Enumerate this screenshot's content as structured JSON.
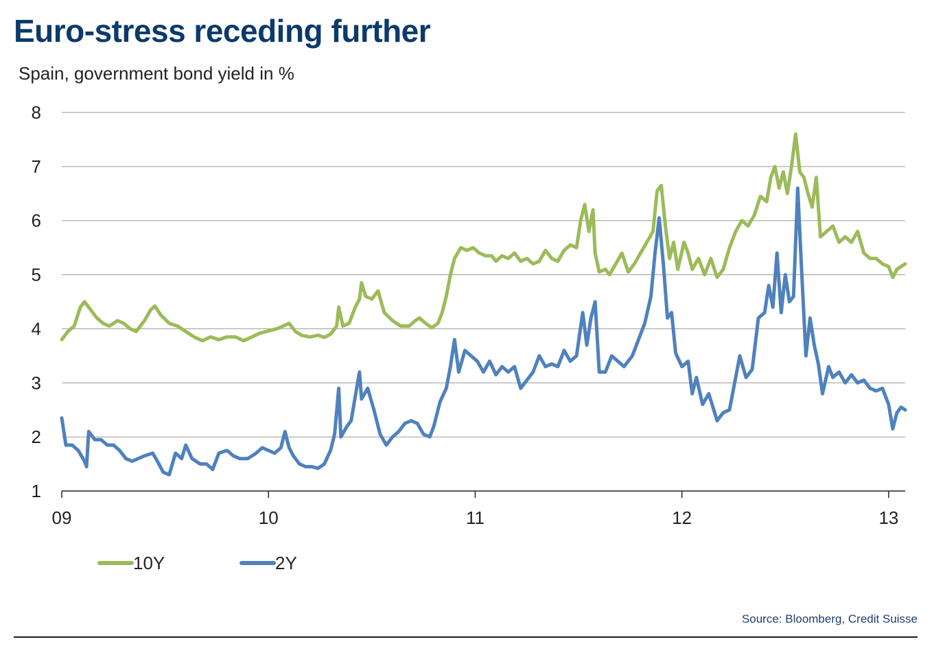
{
  "header": {
    "title": "Euro-stress receding further",
    "subtitle": "Spain, government bond yield in %"
  },
  "footer": {
    "source": "Source: Bloomberg, Credit Suisse"
  },
  "chart_data": {
    "type": "line",
    "title": "Euro-stress receding further",
    "ylabel": "Spain, government bond yield in %",
    "xlim": [
      2009.0,
      2013.08
    ],
    "ylim": [
      1,
      8
    ],
    "yticks": [
      1,
      2,
      3,
      4,
      5,
      6,
      7,
      8
    ],
    "xticks": [
      {
        "value": 2009,
        "label": "09"
      },
      {
        "value": 2010,
        "label": "10"
      },
      {
        "value": 2011,
        "label": "11"
      },
      {
        "value": 2012,
        "label": "12"
      },
      {
        "value": 2013,
        "label": "13"
      }
    ],
    "grid": true,
    "legend_position": "bottom-left",
    "series": [
      {
        "name": "10Y",
        "color": "#9bbb59",
        "points": [
          [
            2009.0,
            3.8
          ],
          [
            2009.03,
            3.95
          ],
          [
            2009.06,
            4.05
          ],
          [
            2009.09,
            4.4
          ],
          [
            2009.11,
            4.5
          ],
          [
            2009.14,
            4.35
          ],
          [
            2009.17,
            4.2
          ],
          [
            2009.2,
            4.1
          ],
          [
            2009.23,
            4.05
          ],
          [
            2009.27,
            4.15
          ],
          [
            2009.3,
            4.1
          ],
          [
            2009.33,
            4.0
          ],
          [
            2009.36,
            3.95
          ],
          [
            2009.4,
            4.15
          ],
          [
            2009.43,
            4.35
          ],
          [
            2009.45,
            4.42
          ],
          [
            2009.48,
            4.25
          ],
          [
            2009.52,
            4.1
          ],
          [
            2009.56,
            4.05
          ],
          [
            2009.6,
            3.95
          ],
          [
            2009.64,
            3.85
          ],
          [
            2009.68,
            3.78
          ],
          [
            2009.72,
            3.85
          ],
          [
            2009.76,
            3.8
          ],
          [
            2009.8,
            3.85
          ],
          [
            2009.84,
            3.85
          ],
          [
            2009.88,
            3.78
          ],
          [
            2009.92,
            3.85
          ],
          [
            2009.96,
            3.92
          ],
          [
            2010.0,
            3.96
          ],
          [
            2010.04,
            4.0
          ],
          [
            2010.07,
            4.05
          ],
          [
            2010.1,
            4.1
          ],
          [
            2010.13,
            3.95
          ],
          [
            2010.16,
            3.88
          ],
          [
            2010.2,
            3.85
          ],
          [
            2010.24,
            3.88
          ],
          [
            2010.27,
            3.84
          ],
          [
            2010.3,
            3.9
          ],
          [
            2010.33,
            4.05
          ],
          [
            2010.34,
            4.4
          ],
          [
            2010.36,
            4.05
          ],
          [
            2010.39,
            4.1
          ],
          [
            2010.42,
            4.4
          ],
          [
            2010.44,
            4.55
          ],
          [
            2010.45,
            4.85
          ],
          [
            2010.47,
            4.6
          ],
          [
            2010.5,
            4.55
          ],
          [
            2010.53,
            4.7
          ],
          [
            2010.56,
            4.3
          ],
          [
            2010.6,
            4.15
          ],
          [
            2010.64,
            4.05
          ],
          [
            2010.68,
            4.05
          ],
          [
            2010.71,
            4.15
          ],
          [
            2010.73,
            4.2
          ],
          [
            2010.76,
            4.1
          ],
          [
            2010.79,
            4.02
          ],
          [
            2010.82,
            4.1
          ],
          [
            2010.84,
            4.3
          ],
          [
            2010.86,
            4.6
          ],
          [
            2010.88,
            5.0
          ],
          [
            2010.9,
            5.3
          ],
          [
            2010.93,
            5.5
          ],
          [
            2010.96,
            5.45
          ],
          [
            2010.99,
            5.5
          ],
          [
            2011.02,
            5.4
          ],
          [
            2011.05,
            5.35
          ],
          [
            2011.08,
            5.35
          ],
          [
            2011.1,
            5.25
          ],
          [
            2011.13,
            5.35
          ],
          [
            2011.16,
            5.3
          ],
          [
            2011.19,
            5.4
          ],
          [
            2011.22,
            5.25
          ],
          [
            2011.25,
            5.3
          ],
          [
            2011.28,
            5.2
          ],
          [
            2011.31,
            5.25
          ],
          [
            2011.34,
            5.45
          ],
          [
            2011.37,
            5.3
          ],
          [
            2011.4,
            5.25
          ],
          [
            2011.43,
            5.45
          ],
          [
            2011.46,
            5.55
          ],
          [
            2011.49,
            5.5
          ],
          [
            2011.51,
            6.0
          ],
          [
            2011.53,
            6.3
          ],
          [
            2011.55,
            5.8
          ],
          [
            2011.57,
            6.2
          ],
          [
            2011.58,
            5.4
          ],
          [
            2011.6,
            5.05
          ],
          [
            2011.63,
            5.1
          ],
          [
            2011.65,
            5.0
          ],
          [
            2011.68,
            5.2
          ],
          [
            2011.71,
            5.4
          ],
          [
            2011.74,
            5.05
          ],
          [
            2011.77,
            5.2
          ],
          [
            2011.8,
            5.4
          ],
          [
            2011.83,
            5.6
          ],
          [
            2011.86,
            5.8
          ],
          [
            2011.88,
            6.55
          ],
          [
            2011.9,
            6.65
          ],
          [
            2011.92,
            5.9
          ],
          [
            2011.94,
            5.3
          ],
          [
            2011.96,
            5.6
          ],
          [
            2011.98,
            5.1
          ],
          [
            2012.01,
            5.6
          ],
          [
            2012.03,
            5.4
          ],
          [
            2012.05,
            5.1
          ],
          [
            2012.08,
            5.3
          ],
          [
            2012.11,
            5.0
          ],
          [
            2012.14,
            5.3
          ],
          [
            2012.17,
            4.95
          ],
          [
            2012.2,
            5.1
          ],
          [
            2012.23,
            5.5
          ],
          [
            2012.26,
            5.8
          ],
          [
            2012.29,
            6.0
          ],
          [
            2012.32,
            5.9
          ],
          [
            2012.35,
            6.1
          ],
          [
            2012.38,
            6.45
          ],
          [
            2012.41,
            6.35
          ],
          [
            2012.43,
            6.8
          ],
          [
            2012.45,
            7.0
          ],
          [
            2012.47,
            6.6
          ],
          [
            2012.49,
            6.9
          ],
          [
            2012.51,
            6.5
          ],
          [
            2012.53,
            7.0
          ],
          [
            2012.55,
            7.6
          ],
          [
            2012.57,
            6.9
          ],
          [
            2012.59,
            6.8
          ],
          [
            2012.61,
            6.5
          ],
          [
            2012.63,
            6.25
          ],
          [
            2012.65,
            6.8
          ],
          [
            2012.67,
            5.7
          ],
          [
            2012.7,
            5.8
          ],
          [
            2012.73,
            5.9
          ],
          [
            2012.76,
            5.6
          ],
          [
            2012.79,
            5.7
          ],
          [
            2012.82,
            5.6
          ],
          [
            2012.85,
            5.8
          ],
          [
            2012.88,
            5.4
          ],
          [
            2012.91,
            5.3
          ],
          [
            2012.94,
            5.3
          ],
          [
            2012.97,
            5.2
          ],
          [
            2013.0,
            5.15
          ],
          [
            2013.02,
            4.95
          ],
          [
            2013.04,
            5.1
          ],
          [
            2013.06,
            5.15
          ],
          [
            2013.08,
            5.2
          ]
        ]
      },
      {
        "name": "2Y",
        "color": "#4f81bd",
        "points": [
          [
            2009.0,
            2.35
          ],
          [
            2009.02,
            1.85
          ],
          [
            2009.05,
            1.85
          ],
          [
            2009.08,
            1.75
          ],
          [
            2009.11,
            1.55
          ],
          [
            2009.12,
            1.45
          ],
          [
            2009.13,
            2.1
          ],
          [
            2009.16,
            1.95
          ],
          [
            2009.19,
            1.95
          ],
          [
            2009.22,
            1.85
          ],
          [
            2009.25,
            1.85
          ],
          [
            2009.28,
            1.75
          ],
          [
            2009.31,
            1.6
          ],
          [
            2009.34,
            1.55
          ],
          [
            2009.37,
            1.6
          ],
          [
            2009.4,
            1.65
          ],
          [
            2009.44,
            1.7
          ],
          [
            2009.47,
            1.5
          ],
          [
            2009.49,
            1.35
          ],
          [
            2009.52,
            1.3
          ],
          [
            2009.55,
            1.7
          ],
          [
            2009.58,
            1.6
          ],
          [
            2009.6,
            1.85
          ],
          [
            2009.63,
            1.6
          ],
          [
            2009.67,
            1.5
          ],
          [
            2009.7,
            1.5
          ],
          [
            2009.73,
            1.4
          ],
          [
            2009.76,
            1.7
          ],
          [
            2009.8,
            1.75
          ],
          [
            2009.83,
            1.65
          ],
          [
            2009.86,
            1.6
          ],
          [
            2009.9,
            1.6
          ],
          [
            2009.94,
            1.7
          ],
          [
            2009.97,
            1.8
          ],
          [
            2010.0,
            1.75
          ],
          [
            2010.03,
            1.7
          ],
          [
            2010.06,
            1.8
          ],
          [
            2010.08,
            2.1
          ],
          [
            2010.1,
            1.8
          ],
          [
            2010.12,
            1.65
          ],
          [
            2010.15,
            1.5
          ],
          [
            2010.18,
            1.45
          ],
          [
            2010.21,
            1.45
          ],
          [
            2010.24,
            1.42
          ],
          [
            2010.27,
            1.5
          ],
          [
            2010.3,
            1.75
          ],
          [
            2010.32,
            2.05
          ],
          [
            2010.34,
            2.9
          ],
          [
            2010.35,
            2.0
          ],
          [
            2010.38,
            2.2
          ],
          [
            2010.4,
            2.3
          ],
          [
            2010.42,
            2.75
          ],
          [
            2010.44,
            3.2
          ],
          [
            2010.45,
            2.7
          ],
          [
            2010.48,
            2.9
          ],
          [
            2010.51,
            2.5
          ],
          [
            2010.54,
            2.05
          ],
          [
            2010.57,
            1.85
          ],
          [
            2010.6,
            2.0
          ],
          [
            2010.63,
            2.1
          ],
          [
            2010.66,
            2.25
          ],
          [
            2010.69,
            2.3
          ],
          [
            2010.72,
            2.25
          ],
          [
            2010.75,
            2.05
          ],
          [
            2010.78,
            2.0
          ],
          [
            2010.8,
            2.2
          ],
          [
            2010.83,
            2.65
          ],
          [
            2010.86,
            2.9
          ],
          [
            2010.88,
            3.3
          ],
          [
            2010.9,
            3.8
          ],
          [
            2010.92,
            3.2
          ],
          [
            2010.95,
            3.6
          ],
          [
            2010.98,
            3.5
          ],
          [
            2011.01,
            3.4
          ],
          [
            2011.04,
            3.2
          ],
          [
            2011.07,
            3.4
          ],
          [
            2011.1,
            3.15
          ],
          [
            2011.13,
            3.3
          ],
          [
            2011.16,
            3.2
          ],
          [
            2011.19,
            3.3
          ],
          [
            2011.22,
            2.9
          ],
          [
            2011.25,
            3.05
          ],
          [
            2011.28,
            3.2
          ],
          [
            2011.31,
            3.5
          ],
          [
            2011.34,
            3.3
          ],
          [
            2011.37,
            3.35
          ],
          [
            2011.4,
            3.3
          ],
          [
            2011.43,
            3.6
          ],
          [
            2011.46,
            3.4
          ],
          [
            2011.49,
            3.5
          ],
          [
            2011.52,
            4.3
          ],
          [
            2011.54,
            3.7
          ],
          [
            2011.56,
            4.2
          ],
          [
            2011.58,
            4.5
          ],
          [
            2011.6,
            3.2
          ],
          [
            2011.63,
            3.2
          ],
          [
            2011.66,
            3.5
          ],
          [
            2011.69,
            3.4
          ],
          [
            2011.72,
            3.3
          ],
          [
            2011.76,
            3.5
          ],
          [
            2011.79,
            3.8
          ],
          [
            2011.82,
            4.1
          ],
          [
            2011.85,
            4.6
          ],
          [
            2011.87,
            5.4
          ],
          [
            2011.89,
            6.05
          ],
          [
            2011.91,
            5.2
          ],
          [
            2011.93,
            4.2
          ],
          [
            2011.95,
            4.3
          ],
          [
            2011.97,
            3.55
          ],
          [
            2012.0,
            3.3
          ],
          [
            2012.03,
            3.4
          ],
          [
            2012.05,
            2.8
          ],
          [
            2012.07,
            3.1
          ],
          [
            2012.1,
            2.6
          ],
          [
            2012.13,
            2.8
          ],
          [
            2012.15,
            2.55
          ],
          [
            2012.17,
            2.3
          ],
          [
            2012.2,
            2.45
          ],
          [
            2012.23,
            2.5
          ],
          [
            2012.25,
            2.9
          ],
          [
            2012.28,
            3.5
          ],
          [
            2012.31,
            3.1
          ],
          [
            2012.34,
            3.25
          ],
          [
            2012.37,
            4.2
          ],
          [
            2012.4,
            4.3
          ],
          [
            2012.42,
            4.8
          ],
          [
            2012.44,
            4.4
          ],
          [
            2012.46,
            5.4
          ],
          [
            2012.48,
            4.3
          ],
          [
            2012.5,
            5.0
          ],
          [
            2012.52,
            4.5
          ],
          [
            2012.54,
            4.6
          ],
          [
            2012.56,
            6.6
          ],
          [
            2012.58,
            5.0
          ],
          [
            2012.6,
            3.5
          ],
          [
            2012.62,
            4.2
          ],
          [
            2012.64,
            3.7
          ],
          [
            2012.66,
            3.35
          ],
          [
            2012.68,
            2.8
          ],
          [
            2012.71,
            3.3
          ],
          [
            2012.73,
            3.1
          ],
          [
            2012.76,
            3.2
          ],
          [
            2012.79,
            3.0
          ],
          [
            2012.82,
            3.15
          ],
          [
            2012.85,
            3.0
          ],
          [
            2012.88,
            3.05
          ],
          [
            2012.91,
            2.9
          ],
          [
            2012.94,
            2.85
          ],
          [
            2012.97,
            2.9
          ],
          [
            2013.0,
            2.6
          ],
          [
            2013.02,
            2.15
          ],
          [
            2013.04,
            2.45
          ],
          [
            2013.06,
            2.55
          ],
          [
            2013.08,
            2.5
          ]
        ]
      }
    ]
  }
}
